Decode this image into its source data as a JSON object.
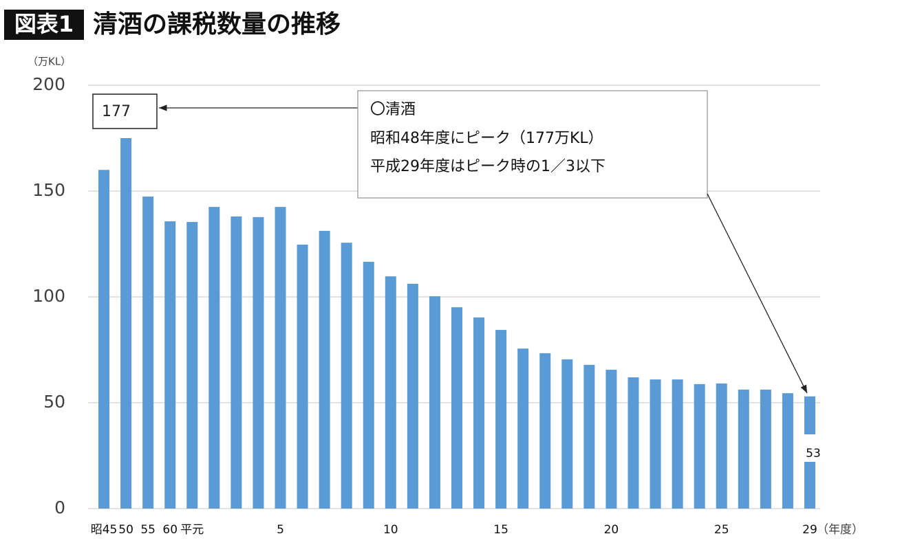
{
  "chart_data": {
    "type": "bar",
    "badge": "図表1",
    "title": "清酒の課税数量の推移",
    "y_unit": "（万KL）",
    "x_unit": "（年度）",
    "categories": [
      "昭45",
      "50",
      "55",
      "60",
      "平元",
      null,
      null,
      null,
      "5",
      null,
      null,
      null,
      null,
      "10",
      null,
      null,
      null,
      null,
      "15",
      null,
      null,
      null,
      null,
      "20",
      null,
      null,
      null,
      null,
      "25",
      null,
      null,
      null,
      "29"
    ],
    "values": [
      160,
      175,
      147.4,
      135.7,
      135.4,
      142.5,
      138,
      137.7,
      142.5,
      124.7,
      131.2,
      125.6,
      116.6,
      109.7,
      106.2,
      100.3,
      95.1,
      90.3,
      84.4,
      75.6,
      73.4,
      70.5,
      67.9,
      65.6,
      62,
      61,
      61,
      58.8,
      59.1,
      56.2,
      56.2,
      54.5,
      53
    ],
    "value_labels": [
      null,
      null,
      null,
      null,
      null,
      null,
      null,
      null,
      null,
      null,
      null,
      null,
      null,
      null,
      null,
      null,
      null,
      null,
      null,
      null,
      null,
      null,
      null,
      null,
      null,
      null,
      null,
      null,
      null,
      null,
      null,
      null,
      "53"
    ],
    "color": "#5b9bd5",
    "ylim": [
      0,
      200
    ],
    "yticks": [
      0,
      50,
      100,
      150,
      200
    ],
    "grid": true,
    "annotations": {
      "peak_label": "177",
      "callout": [
        "〇清酒",
        "昭和48年度にピーク（177万KL）",
        "平成29年度はピーク時の1／3以下"
      ]
    }
  }
}
